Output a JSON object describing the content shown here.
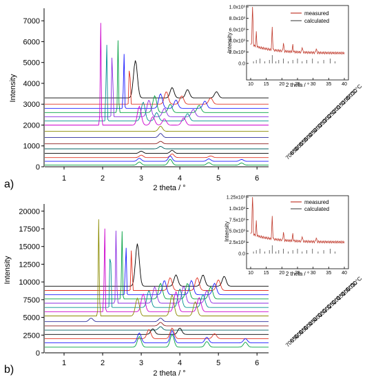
{
  "panels": [
    {
      "label": "a)",
      "xlabel": "2 theta / °",
      "ylabel": "Intensity",
      "xticks": [
        "1",
        "2",
        "3",
        "4",
        "5",
        "6"
      ],
      "yticks": [
        "0",
        "1000",
        "2000",
        "3000",
        "4000",
        "5000",
        "6000",
        "7000"
      ],
      "temperatures": [
        "30°C",
        "50°C",
        "100°C",
        "150°C",
        "200°C",
        "250°C",
        "300°C",
        "350°C",
        "400°C",
        "450°C",
        "500°C",
        "550°C",
        "600°C",
        "650°C",
        "700°C"
      ],
      "inset": {
        "xlabel": "2 theta / °",
        "ylabel": "Intensity",
        "xticks": [
          "10",
          "15",
          "20",
          "25",
          "30",
          "35",
          "40"
        ],
        "yticks": [
          "0.0",
          "2.0x10³",
          "4.0x10³",
          "6.0x10³",
          "8.0x10³",
          "1.0x10³"
        ],
        "legend": [
          "measured",
          "calculated"
        ]
      }
    },
    {
      "label": "b)",
      "xlabel": "2 theta / °",
      "ylabel": "Intensity",
      "xticks": [
        "1",
        "2",
        "3",
        "4",
        "5",
        "6"
      ],
      "yticks": [
        "0",
        "2500",
        "5000",
        "7500",
        "10000",
        "12500",
        "15000",
        "17500",
        "20000"
      ],
      "temperatures": [
        "30°C",
        "50°C",
        "100°C",
        "150°C",
        "200°C",
        "250°C",
        "300°C",
        "350°C",
        "400°C",
        "450°C",
        "500°C",
        "550°C",
        "600°C",
        "650°C",
        "700°C"
      ],
      "inset": {
        "xlabel": "2 theta / °",
        "ylabel": "Intensity",
        "xticks": [
          "10",
          "15",
          "20",
          "25",
          "30",
          "35",
          "40"
        ],
        "yticks": [
          "0.0",
          "2.5x10³",
          "5.0x10³",
          "7.5x10³",
          "1.0x10³",
          "1.25x10³"
        ],
        "legend": [
          "measured",
          "calculated"
        ]
      }
    }
  ],
  "colors": {
    "series": [
      "#000000",
      "#e03020",
      "#1a1aff",
      "#00a040",
      "#8a2be2",
      "#009090",
      "#cc00cc",
      "#8b8b00",
      "#2a2a9a",
      "#8b1a1a",
      "#006060",
      "#000000",
      "#e03020",
      "#1a1aff",
      "#00a040"
    ],
    "measured": "#c0392b",
    "calculated": "#333333"
  },
  "chart_data": [
    {
      "type": "line",
      "xlabel": "2 theta / °",
      "ylabel": "Intensity",
      "xlim": [
        0.5,
        6.3
      ],
      "ylim": [
        0,
        7600
      ],
      "series": [
        {
          "name": "700°C",
          "baseline": 80,
          "peaks": [
            [
              2.95,
              150
            ],
            [
              3.75,
              280
            ],
            [
              4.75,
              120
            ],
            [
              5.6,
              100
            ]
          ]
        },
        {
          "name": "650°C",
          "baseline": 260,
          "peaks": [
            [
              2.95,
              150
            ],
            [
              3.75,
              260
            ],
            [
              4.75,
              120
            ],
            [
              5.6,
              90
            ]
          ]
        },
        {
          "name": "600°C",
          "baseline": 440,
          "peaks": [
            [
              3.0,
              120
            ],
            [
              3.8,
              180
            ],
            [
              4.8,
              80
            ]
          ]
        },
        {
          "name": "550°C",
          "baseline": 640,
          "peaks": [
            [
              3.0,
              110
            ],
            [
              3.8,
              150
            ]
          ]
        },
        {
          "name": "500°C",
          "baseline": 860,
          "peaks": [
            [
              3.5,
              120
            ]
          ]
        },
        {
          "name": "450°C",
          "baseline": 1100,
          "peaks": [
            [
              3.5,
              120
            ]
          ]
        },
        {
          "name": "400°C",
          "baseline": 1400,
          "peaks": [
            [
              3.5,
              200
            ]
          ]
        },
        {
          "name": "350°C",
          "baseline": 1700,
          "peaks": [
            [
              3.5,
              250
            ]
          ]
        },
        {
          "name": "300°C",
          "baseline": 2000,
          "peaks": [
            [
              1.95,
              4900
            ],
            [
              2.95,
              900
            ],
            [
              3.3,
              400
            ],
            [
              3.6,
              300
            ],
            [
              4.1,
              350
            ]
          ]
        },
        {
          "name": "250°C",
          "baseline": 2200,
          "peaks": [
            [
              2.1,
              4600
            ],
            [
              3.05,
              900
            ],
            [
              3.4,
              400
            ],
            [
              4.2,
              350
            ]
          ]
        },
        {
          "name": "200°C",
          "baseline": 2400,
          "peaks": [
            [
              2.25,
              4000
            ],
            [
              3.2,
              800
            ],
            [
              3.6,
              400
            ],
            [
              4.35,
              350
            ]
          ]
        },
        {
          "name": "150°C",
          "baseline": 2600,
          "peaks": [
            [
              2.4,
              3500
            ],
            [
              3.35,
              800
            ],
            [
              3.75,
              400
            ],
            [
              4.5,
              350
            ]
          ]
        },
        {
          "name": "100°C",
          "baseline": 2800,
          "peaks": [
            [
              2.55,
              3000
            ],
            [
              3.5,
              700
            ],
            [
              3.9,
              400
            ],
            [
              4.65,
              350
            ]
          ]
        },
        {
          "name": "50°C",
          "baseline": 3000,
          "peaks": [
            [
              2.7,
              2600
            ],
            [
              3.65,
              600
            ],
            [
              4.05,
              400
            ],
            [
              4.8,
              300
            ]
          ]
        },
        {
          "name": "30°C",
          "baseline": 3300,
          "peaks": [
            [
              2.85,
              1800
            ],
            [
              3.8,
              500
            ],
            [
              4.2,
              400
            ],
            [
              4.95,
              300
            ]
          ]
        }
      ]
    },
    {
      "type": "line",
      "xlabel": "2 theta / °",
      "ylabel": "Intensity",
      "xlim": [
        0.5,
        6.3
      ],
      "ylim": [
        0,
        21000
      ],
      "series": [
        {
          "name": "700°C",
          "baseline": 800,
          "peaks": [
            [
              2.95,
              1500
            ],
            [
              3.8,
              1800
            ],
            [
              4.7,
              800
            ],
            [
              5.7,
              700
            ]
          ]
        },
        {
          "name": "650°C",
          "baseline": 1400,
          "peaks": [
            [
              2.95,
              1400
            ],
            [
              3.8,
              1700
            ],
            [
              4.7,
              800
            ],
            [
              5.7,
              600
            ]
          ]
        },
        {
          "name": "600°C",
          "baseline": 2000,
          "peaks": [
            [
              3.2,
              1300
            ],
            [
              3.8,
              1500
            ],
            [
              4.9,
              700
            ]
          ]
        },
        {
          "name": "550°C",
          "baseline": 2600,
          "peaks": [
            [
              3.3,
              800
            ],
            [
              4.0,
              900
            ]
          ]
        },
        {
          "name": "500°C",
          "baseline": 3200,
          "peaks": [
            [
              3.5,
              500
            ]
          ]
        },
        {
          "name": "450°C",
          "baseline": 3800,
          "peaks": [
            [
              3.5,
              500
            ]
          ]
        },
        {
          "name": "400°C",
          "baseline": 4400,
          "peaks": [
            [
              1.7,
              500
            ],
            [
              3.5,
              500
            ]
          ]
        },
        {
          "name": "350°C",
          "baseline": 5200,
          "peaks": [
            [
              1.9,
              14000
            ],
            [
              2.9,
              2500
            ],
            [
              3.8,
              3000
            ],
            [
              4.4,
              2000
            ]
          ]
        },
        {
          "name": "300°C",
          "baseline": 5800,
          "peaks": [
            [
              2.05,
              13000
            ],
            [
              3.05,
              2500
            ],
            [
              3.9,
              2800
            ],
            [
              4.5,
              2000
            ]
          ]
        },
        {
          "name": "250°C",
          "baseline": 6400,
          "peaks": [
            [
              2.2,
              12000
            ],
            [
              3.2,
              2400
            ],
            [
              4.0,
              2600
            ],
            [
              4.6,
              1800
            ]
          ]
        },
        {
          "name": "200°C",
          "baseline": 7000,
          "peaks": [
            [
              2.35,
              11000
            ],
            [
              3.35,
              2300
            ],
            [
              4.1,
              2400
            ],
            [
              4.7,
              1800
            ]
          ]
        },
        {
          "name": "150°C",
          "baseline": 7600,
          "peaks": [
            [
              2.5,
              10000
            ],
            [
              3.5,
              2200
            ],
            [
              4.2,
              2200
            ],
            [
              4.8,
              1700
            ]
          ]
        },
        {
          "name": "100°C",
          "baseline": 8200,
          "peaks": [
            [
              2.6,
              8800
            ],
            [
              3.6,
              2000
            ],
            [
              4.3,
              2000
            ],
            [
              4.9,
              1600
            ]
          ]
        },
        {
          "name": "50°C",
          "baseline": 8800,
          "peaks": [
            [
              2.75,
              7500
            ],
            [
              3.75,
              1800
            ],
            [
              4.45,
              1800
            ],
            [
              5.0,
              1500
            ]
          ]
        },
        {
          "name": "30°C",
          "baseline": 9400,
          "peaks": [
            [
              2.9,
              6000
            ],
            [
              3.9,
              1600
            ],
            [
              4.6,
              1600
            ],
            [
              5.15,
              1400
            ]
          ]
        }
      ]
    }
  ]
}
